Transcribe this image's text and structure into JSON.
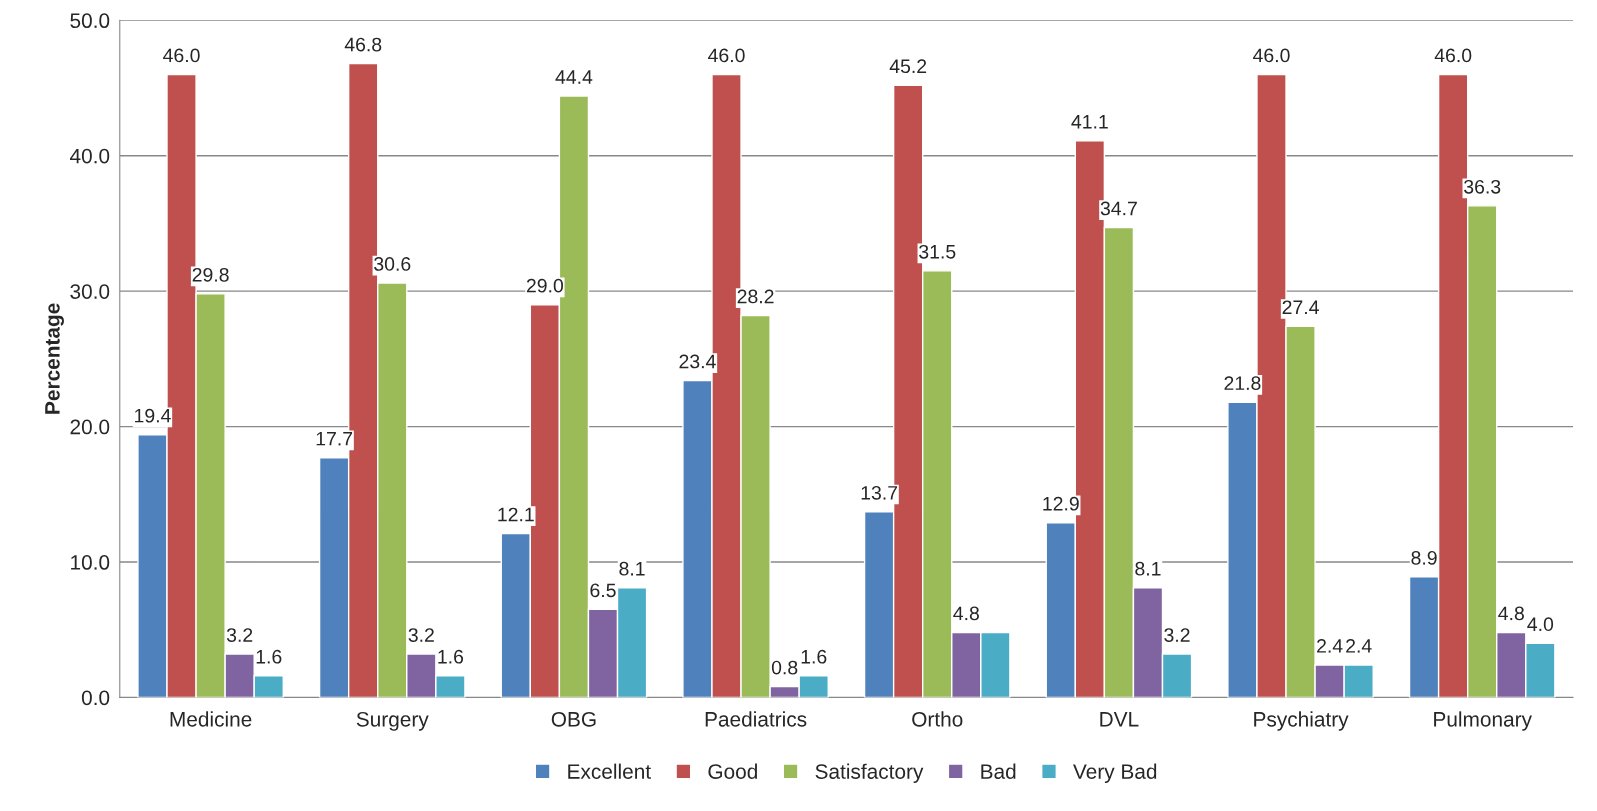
{
  "chart_data": {
    "type": "bar",
    "ylabel": "Percentage",
    "categories": [
      "Medicine",
      "Surgery",
      "OBG",
      "Paediatrics",
      "Ortho",
      "DVL",
      "Psychiatry",
      "Pulmonary"
    ],
    "series": [
      {
        "name": "Excellent",
        "color": "#4f81bd",
        "values": [
          19.4,
          17.7,
          12.1,
          23.4,
          13.7,
          12.9,
          21.8,
          8.9
        ],
        "value_labels": [
          "19.4",
          "17.7",
          "12.1",
          "23.4",
          "13.7",
          "12.9",
          "21.8",
          "8.9"
        ]
      },
      {
        "name": "Good",
        "color": "#c0504d",
        "values": [
          46.0,
          46.8,
          29.0,
          46.0,
          45.2,
          41.1,
          46.0,
          46.0
        ],
        "value_labels": [
          "46.0",
          "46.8",
          "29.0",
          "46.0",
          "45.2",
          "41.1",
          "46.0",
          "46.0"
        ]
      },
      {
        "name": "Satisfactory",
        "color": "#9bbb59",
        "values": [
          29.8,
          30.6,
          44.4,
          28.2,
          31.5,
          34.7,
          27.4,
          36.3
        ],
        "value_labels": [
          "29.8",
          "30.6",
          "44.4",
          "28.2",
          "31.5",
          "34.7",
          "27.4",
          "36.3"
        ]
      },
      {
        "name": "Bad",
        "color": "#8064a2",
        "values": [
          3.2,
          3.2,
          6.5,
          0.8,
          4.8,
          8.1,
          2.4,
          4.8
        ],
        "value_labels": [
          "3.2",
          "3.2",
          "6.5",
          "0.8",
          "4.8",
          "8.1",
          "2.4",
          "4.8"
        ]
      },
      {
        "name": "Very Bad",
        "color": "#4bacc6",
        "values": [
          1.6,
          1.6,
          8.1,
          1.6,
          4.8,
          3.2,
          2.4,
          4.0
        ],
        "value_labels": [
          "1.6",
          "1.6",
          "8.1",
          "1.6",
          null,
          "3.2",
          "2.4",
          "4.0"
        ]
      }
    ],
    "ylim": [
      0,
      50
    ],
    "yticks": [
      {
        "value": 0,
        "label": "0.0"
      },
      {
        "value": 10,
        "label": "10.0"
      },
      {
        "value": 20,
        "label": "20.0"
      },
      {
        "value": 30,
        "label": "30.0"
      },
      {
        "value": 40,
        "label": "40.0"
      },
      {
        "value": 50,
        "label": "50.0"
      }
    ],
    "grid": "y",
    "legend": "bottom"
  }
}
